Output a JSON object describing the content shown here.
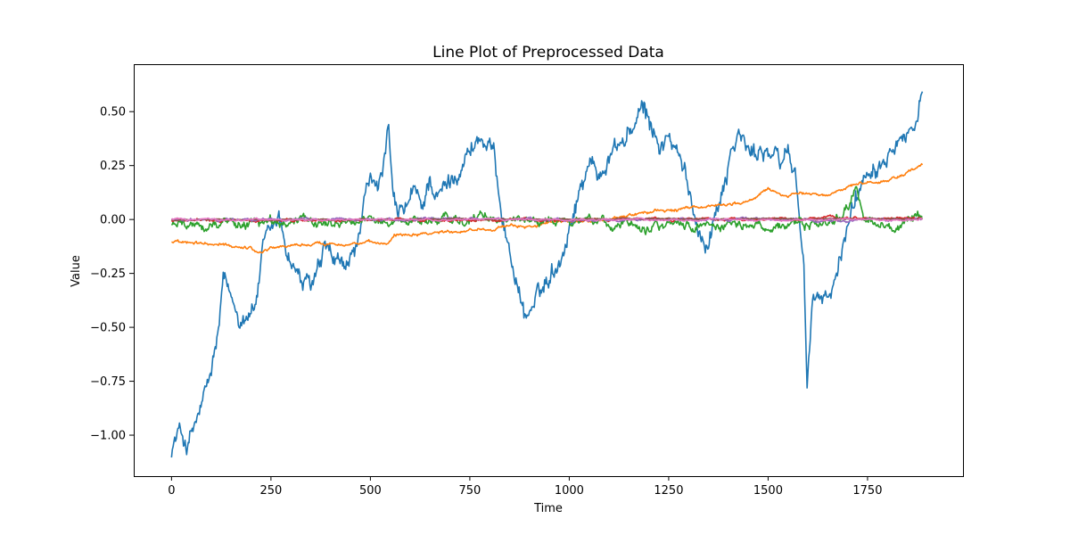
{
  "chart_data": {
    "type": "line",
    "title": "Line Plot of Preprocessed Data",
    "xlabel": "Time",
    "ylabel": "Value",
    "xlim": [
      -95,
      1990
    ],
    "ylim": [
      -1.19,
      0.72
    ],
    "xticks": [
      0,
      250,
      500,
      750,
      1000,
      1250,
      1500,
      1750
    ],
    "xtick_labels": [
      "0",
      "250",
      "500",
      "750",
      "1000",
      "1250",
      "1500",
      "1750"
    ],
    "yticks": [
      -1.0,
      -0.75,
      -0.5,
      -0.25,
      0.0,
      0.25,
      0.5
    ],
    "ytick_labels": [
      "−1.00",
      "−0.75",
      "−0.50",
      "−0.25",
      "0.00",
      "0.25",
      "0.50"
    ],
    "grid": false,
    "legend": "none",
    "n_points": 1890,
    "series": [
      {
        "color": "#1f77b4",
        "anchors": [
          [
            0,
            -1.06
          ],
          [
            20,
            -0.98
          ],
          [
            40,
            -1.05
          ],
          [
            60,
            -0.95
          ],
          [
            80,
            -0.85
          ],
          [
            100,
            -0.72
          ],
          [
            120,
            -0.5
          ],
          [
            130,
            -0.3
          ],
          [
            150,
            -0.38
          ],
          [
            170,
            -0.45
          ],
          [
            190,
            -0.42
          ],
          [
            210,
            -0.4
          ],
          [
            230,
            -0.15
          ],
          [
            250,
            -0.08
          ],
          [
            270,
            0.0
          ],
          [
            290,
            -0.15
          ],
          [
            310,
            -0.22
          ],
          [
            330,
            -0.3
          ],
          [
            350,
            -0.32
          ],
          [
            370,
            -0.25
          ],
          [
            390,
            -0.15
          ],
          [
            410,
            -0.22
          ],
          [
            430,
            -0.25
          ],
          [
            450,
            -0.2
          ],
          [
            470,
            -0.1
          ],
          [
            490,
            0.1
          ],
          [
            510,
            0.18
          ],
          [
            530,
            0.2
          ],
          [
            545,
            0.42
          ],
          [
            555,
            0.1
          ],
          [
            570,
            0.0
          ],
          [
            590,
            0.05
          ],
          [
            610,
            0.12
          ],
          [
            630,
            0.05
          ],
          [
            650,
            0.2
          ],
          [
            670,
            0.1
          ],
          [
            690,
            0.15
          ],
          [
            710,
            0.2
          ],
          [
            730,
            0.28
          ],
          [
            750,
            0.32
          ],
          [
            770,
            0.38
          ],
          [
            790,
            0.35
          ],
          [
            810,
            0.3
          ],
          [
            830,
            0.05
          ],
          [
            850,
            -0.15
          ],
          [
            870,
            -0.3
          ],
          [
            890,
            -0.45
          ],
          [
            910,
            -0.4
          ],
          [
            930,
            -0.35
          ],
          [
            950,
            -0.25
          ],
          [
            970,
            -0.2
          ],
          [
            990,
            -0.1
          ],
          [
            1010,
            0.05
          ],
          [
            1030,
            0.15
          ],
          [
            1050,
            0.3
          ],
          [
            1070,
            0.2
          ],
          [
            1090,
            0.25
          ],
          [
            1110,
            0.32
          ],
          [
            1130,
            0.35
          ],
          [
            1150,
            0.4
          ],
          [
            1170,
            0.45
          ],
          [
            1190,
            0.5
          ],
          [
            1210,
            0.4
          ],
          [
            1230,
            0.35
          ],
          [
            1250,
            0.38
          ],
          [
            1270,
            0.3
          ],
          [
            1290,
            0.2
          ],
          [
            1310,
            0.05
          ],
          [
            1330,
            -0.05
          ],
          [
            1350,
            -0.1
          ],
          [
            1370,
            0.05
          ],
          [
            1390,
            0.2
          ],
          [
            1410,
            0.35
          ],
          [
            1430,
            0.4
          ],
          [
            1450,
            0.3
          ],
          [
            1470,
            0.3
          ],
          [
            1490,
            0.35
          ],
          [
            1510,
            0.3
          ],
          [
            1530,
            0.25
          ],
          [
            1550,
            0.32
          ],
          [
            1570,
            0.2
          ],
          [
            1590,
            -0.2
          ],
          [
            1598,
            -0.78
          ],
          [
            1610,
            -0.45
          ],
          [
            1630,
            -0.35
          ],
          [
            1650,
            -0.38
          ],
          [
            1670,
            -0.3
          ],
          [
            1690,
            -0.1
          ],
          [
            1710,
            0.05
          ],
          [
            1730,
            0.15
          ],
          [
            1750,
            0.25
          ],
          [
            1770,
            0.28
          ],
          [
            1790,
            0.3
          ],
          [
            1810,
            0.4
          ],
          [
            1830,
            0.42
          ],
          [
            1850,
            0.4
          ],
          [
            1870,
            0.45
          ],
          [
            1889,
            0.63
          ]
        ],
        "noise": 0.045
      },
      {
        "color": "#ff7f0e",
        "anchors": [
          [
            0,
            -0.11
          ],
          [
            100,
            -0.115
          ],
          [
            200,
            -0.13
          ],
          [
            220,
            -0.155
          ],
          [
            250,
            -0.13
          ],
          [
            300,
            -0.12
          ],
          [
            400,
            -0.11
          ],
          [
            500,
            -0.11
          ],
          [
            540,
            -0.115
          ],
          [
            560,
            -0.07
          ],
          [
            600,
            -0.065
          ],
          [
            700,
            -0.055
          ],
          [
            800,
            -0.04
          ],
          [
            900,
            -0.03
          ],
          [
            1000,
            -0.01
          ],
          [
            1100,
            0.0
          ],
          [
            1150,
            0.02
          ],
          [
            1200,
            0.035
          ],
          [
            1300,
            0.05
          ],
          [
            1400,
            0.075
          ],
          [
            1450,
            0.08
          ],
          [
            1500,
            0.14
          ],
          [
            1550,
            0.11
          ],
          [
            1600,
            0.12
          ],
          [
            1650,
            0.11
          ],
          [
            1700,
            0.16
          ],
          [
            1750,
            0.17
          ],
          [
            1800,
            0.18
          ],
          [
            1850,
            0.22
          ],
          [
            1889,
            0.25
          ]
        ],
        "noise": 0.007
      },
      {
        "color": "#2ca02c",
        "anchors": [
          [
            0,
            -0.025
          ],
          [
            200,
            -0.015
          ],
          [
            400,
            -0.01
          ],
          [
            600,
            -0.005
          ],
          [
            800,
            0.0
          ],
          [
            1000,
            -0.005
          ],
          [
            1200,
            -0.02
          ],
          [
            1400,
            -0.025
          ],
          [
            1600,
            -0.03
          ],
          [
            1650,
            -0.02
          ],
          [
            1680,
            0.02
          ],
          [
            1700,
            0.06
          ],
          [
            1720,
            0.15
          ],
          [
            1740,
            0.02
          ],
          [
            1800,
            -0.05
          ],
          [
            1889,
            0.0
          ]
        ],
        "noise": 0.022
      },
      {
        "color": "#d62728",
        "anchors": [
          [
            0,
            -0.005
          ],
          [
            1000,
            0.0
          ],
          [
            1889,
            0.005
          ]
        ],
        "noise": 0.006
      },
      {
        "color": "#9467bd",
        "anchors": [
          [
            0,
            0.0
          ],
          [
            1000,
            0.0
          ],
          [
            1889,
            0.0
          ]
        ],
        "noise": 0.006
      },
      {
        "color": "#8c564b",
        "anchors": [
          [
            0,
            -0.003
          ],
          [
            1000,
            0.002
          ],
          [
            1889,
            0.003
          ]
        ],
        "noise": 0.003
      },
      {
        "color": "#e377c2",
        "anchors": [
          [
            0,
            0.0
          ],
          [
            1000,
            0.0
          ],
          [
            1889,
            0.0
          ]
        ],
        "noise": 0.004
      }
    ]
  }
}
